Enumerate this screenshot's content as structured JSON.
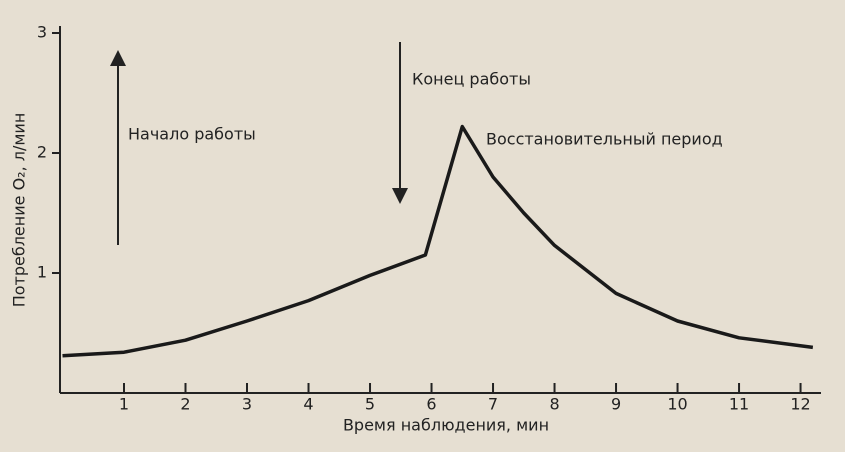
{
  "chart_data": {
    "type": "line",
    "xlabel": "Время наблюдения,   мин",
    "ylabel": "Потребление O₂, л/мин",
    "annotations": [
      "Начало работы",
      "Конец работы",
      "Восстановительный период"
    ],
    "x": [
      0,
      1,
      2,
      3,
      4,
      5,
      5.9,
      6.5,
      7,
      7.5,
      8,
      9,
      10,
      11,
      12.2
    ],
    "series": [
      {
        "color": "#1a1a1a",
        "values": [
          0.31,
          0.34,
          0.44,
          0.6,
          0.77,
          0.98,
          1.15,
          2.22,
          1.8,
          1.5,
          1.23,
          0.83,
          0.6,
          0.46,
          0.38
        ]
      }
    ],
    "xlim": [
      0,
      12.3
    ],
    "xticks": [
      1,
      2,
      3,
      4,
      5,
      6,
      7,
      8,
      9,
      10,
      11,
      12
    ],
    "ylim": [
      0,
      3
    ],
    "yticks": [
      1,
      2,
      3
    ]
  }
}
